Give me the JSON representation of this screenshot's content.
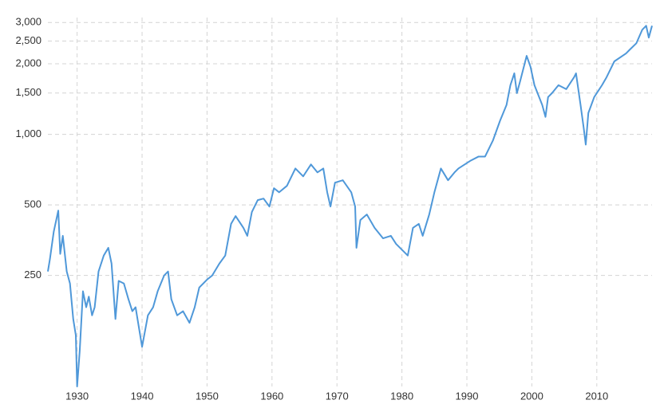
{
  "chart_data": {
    "type": "line",
    "color": "#4f98d9",
    "log_scale": true,
    "grid": true,
    "xlim": [
      1925.5,
      2018.5
    ],
    "xticks": [
      1930,
      1940,
      1950,
      1960,
      1970,
      1980,
      1990,
      2000,
      2010
    ],
    "ylim": [
      84,
      3150
    ],
    "yticks": [
      250,
      500,
      {
        "value": 1000,
        "label": "1,000"
      },
      {
        "value": 1500,
        "label": "1,500"
      },
      {
        "value": 2000,
        "label": "2,000"
      },
      {
        "value": 2500,
        "label": "2,500"
      },
      {
        "value": 3000,
        "label": "3,000"
      }
    ],
    "x": [
      1925.5,
      1925.8,
      1926.4,
      1927.1,
      1927.4,
      1927.8,
      1928.4,
      1928.9,
      1929.4,
      1929.8,
      1930.0,
      1930.4,
      1930.9,
      1931.4,
      1931.8,
      1932.3,
      1932.7,
      1933.3,
      1934.1,
      1934.8,
      1935.3,
      1935.9,
      1936.4,
      1937.2,
      1937.9,
      1938.5,
      1939.0,
      1940.0,
      1940.9,
      1941.7,
      1942.4,
      1943.4,
      1944.0,
      1944.5,
      1945.4,
      1946.3,
      1947.3,
      1948.1,
      1948.8,
      1950.0,
      1950.8,
      1951.9,
      1952.8,
      1953.7,
      1954.4,
      1955.6,
      1956.2,
      1956.9,
      1957.8,
      1958.7,
      1959.6,
      1960.3,
      1961.1,
      1962.3,
      1963.6,
      1964.8,
      1966.0,
      1967.0,
      1967.9,
      1968.5,
      1969.0,
      1969.7,
      1970.9,
      1972.2,
      1972.8,
      1973.0,
      1973.6,
      1974.6,
      1975.8,
      1977.1,
      1978.3,
      1979.1,
      1980.9,
      1981.7,
      1982.6,
      1983.2,
      1984.2,
      1985.0,
      1986.0,
      1987.1,
      1988.1,
      1988.7,
      1990.6,
      1991.8,
      1992.8,
      1994.0,
      1995.1,
      1996.1,
      1996.7,
      1997.3,
      1997.7,
      1998.2,
      1999.2,
      1999.8,
      2000.4,
      2001.6,
      2002.1,
      2002.5,
      2003.1,
      2004.1,
      2005.3,
      2006.5,
      2006.8,
      2007.5,
      2008.0,
      2008.3,
      2008.7,
      2009.6,
      2010.8,
      2011.5,
      2012.7,
      2014.5,
      2015.1,
      2016.1,
      2017.0,
      2017.6,
      2018.0,
      2018.5
    ],
    "values": [
      260,
      292,
      384,
      473,
      309,
      369,
      260,
      231,
      163,
      139,
      84,
      119,
      214,
      183,
      203,
      169,
      183,
      260,
      304,
      328,
      281,
      163,
      237,
      231,
      198,
      176,
      183,
      124,
      169,
      183,
      214,
      250,
      260,
      198,
      169,
      176,
      157,
      183,
      222,
      240,
      250,
      281,
      304,
      415,
      448,
      399,
      369,
      466,
      524,
      532,
      492,
      589,
      566,
      603,
      715,
      662,
      744,
      688,
      715,
      566,
      492,
      622,
      637,
      566,
      492,
      328,
      431,
      455,
      399,
      360,
      369,
      341,
      304,
      399,
      415,
      369,
      455,
      566,
      715,
      637,
      688,
      715,
      773,
      804,
      804,
      940,
      1142,
      1334,
      1621,
      1821,
      1499,
      1685,
      2162,
      1939,
      1621,
      1334,
      1187,
      1442,
      1499,
      1621,
      1559,
      1752,
      1821,
      1334,
      1056,
      904,
      1234,
      1442,
      1621,
      1752,
      2048,
      2213,
      2301,
      2449,
      2795,
      2906,
      2586,
      2906
    ]
  }
}
